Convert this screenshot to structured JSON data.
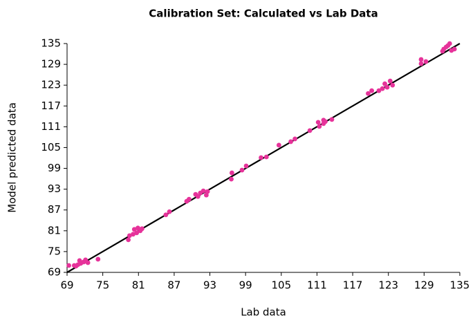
{
  "chart_data": {
    "type": "scatter",
    "title": "Calibration Set: Calculated vs Lab Data",
    "x_label": "Lab data",
    "y_label": "Model predicted data",
    "xlim": [
      69,
      135
    ],
    "ylim": [
      69,
      135
    ],
    "xticks": [
      69,
      75,
      81,
      87,
      93,
      99,
      105,
      111,
      117,
      123,
      129,
      135
    ],
    "yticks": [
      69,
      75,
      81,
      87,
      93,
      99,
      105,
      111,
      117,
      123,
      129,
      135
    ],
    "color": "#e6339a",
    "line_color": "#000000",
    "reference_line": {
      "x": [
        69,
        135
      ],
      "y": [
        69,
        135
      ]
    },
    "x": [
      69.3,
      70.2,
      70.5,
      70.8,
      71.1,
      71.3,
      71.8,
      72.1,
      72.5,
      74.2,
      79.3,
      79.5,
      80.1,
      80.3,
      80.7,
      80.9,
      81.3,
      81.6,
      85.6,
      86.2,
      89.1,
      89.5,
      90.6,
      91.0,
      91.4,
      91.9,
      92.4,
      92.6,
      96.6,
      96.7,
      98.4,
      99.1,
      101.6,
      102.5,
      104.6,
      106.6,
      107.3,
      109.8,
      111.2,
      111.4,
      112.1,
      112.1,
      112.4,
      113.5,
      119.6,
      120.2,
      121.4,
      122.0,
      122.4,
      122.8,
      123.3,
      123.7,
      128.5,
      128.5,
      129.3,
      132.1,
      132.3,
      132.7,
      133.0,
      133.3,
      133.6,
      134.1
    ],
    "values": [
      71.0,
      71.0,
      70.8,
      71.2,
      72.4,
      71.6,
      72.0,
      72.6,
      71.8,
      72.8,
      78.4,
      79.6,
      80.0,
      81.4,
      80.4,
      81.8,
      81.0,
      81.6,
      85.6,
      86.5,
      89.5,
      90.1,
      91.5,
      90.9,
      91.9,
      92.5,
      91.3,
      92.3,
      95.9,
      97.7,
      98.5,
      99.7,
      102.1,
      102.3,
      105.7,
      106.7,
      107.5,
      109.9,
      112.3,
      111.1,
      112.9,
      111.9,
      112.5,
      113.1,
      120.6,
      121.4,
      121.4,
      122.0,
      123.4,
      122.4,
      124.2,
      123.0,
      130.4,
      129.2,
      129.8,
      132.8,
      133.4,
      134.0,
      134.4,
      135.0,
      133.0,
      133.4
    ]
  }
}
